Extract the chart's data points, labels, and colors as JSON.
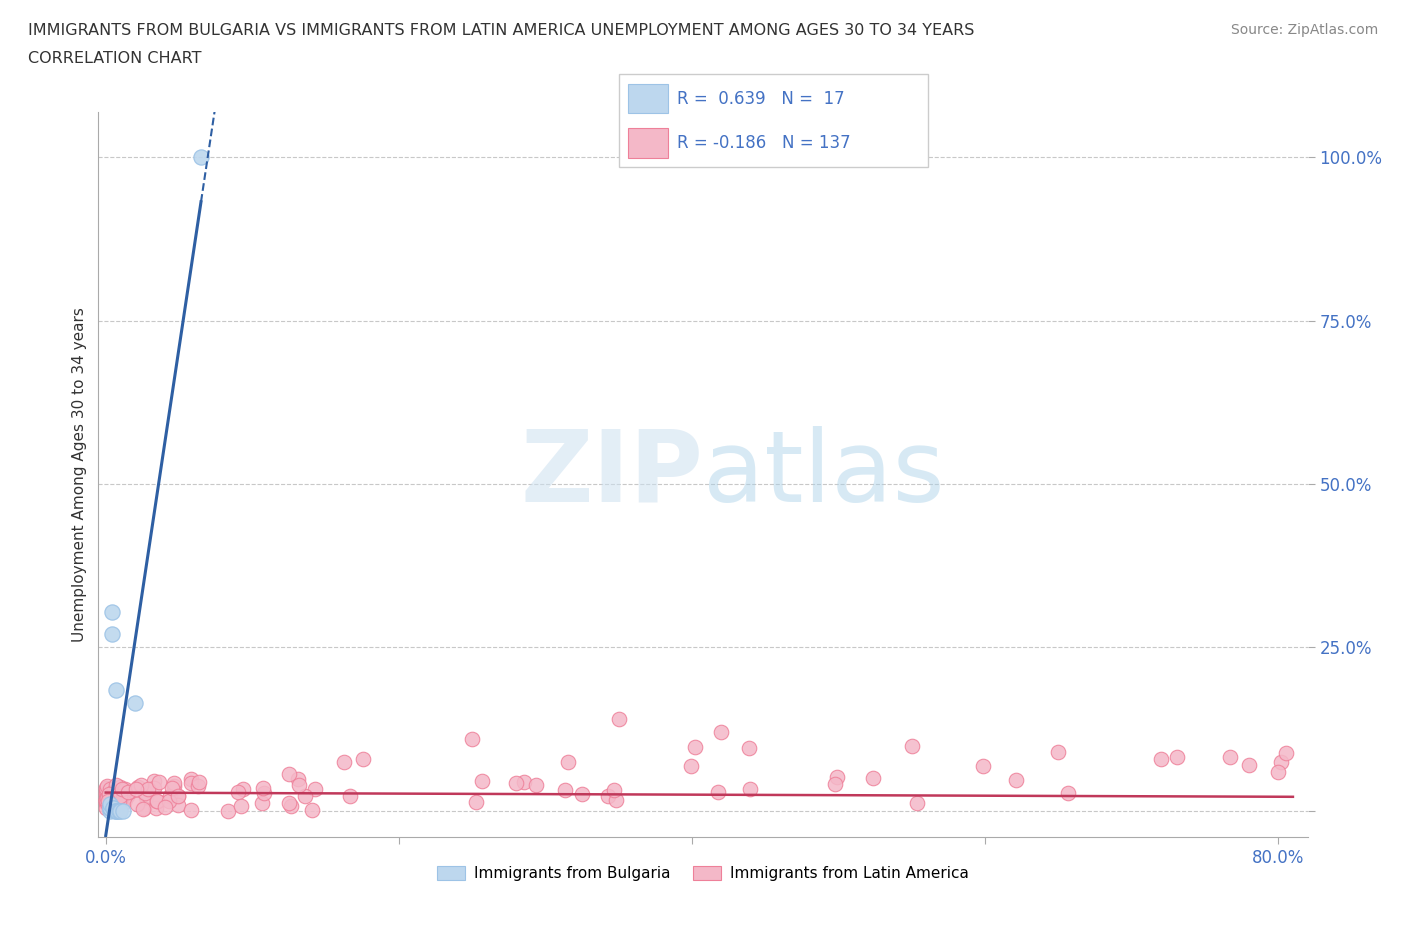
{
  "title_line1": "IMMIGRANTS FROM BULGARIA VS IMMIGRANTS FROM LATIN AMERICA UNEMPLOYMENT AMONG AGES 30 TO 34 YEARS",
  "title_line2": "CORRELATION CHART",
  "source": "Source: ZipAtlas.com",
  "ylabel": "Unemployment Among Ages 30 to 34 years",
  "xlim": [
    -0.005,
    0.82
  ],
  "ylim": [
    -0.04,
    1.07
  ],
  "xticks": [
    0.0,
    0.2,
    0.4,
    0.6,
    0.8
  ],
  "xticklabels": [
    "0.0%",
    "",
    "",
    "",
    "80.0%"
  ],
  "yticks": [
    0.0,
    0.25,
    0.5,
    0.75,
    1.0
  ],
  "yticklabels": [
    "",
    "25.0%",
    "50.0%",
    "75.0%",
    "100.0%"
  ],
  "grid_color": "#c8c8c8",
  "bg_color": "#ffffff",
  "tick_color": "#4472c4",
  "bulgaria_color": "#bdd7ee",
  "latin_color": "#f4b8c8",
  "bulgaria_edge": "#9dc3e6",
  "latin_edge": "#ee8099",
  "trend_bulgaria_color": "#2e5fa3",
  "trend_latin_color": "#c0385a",
  "R_bulgaria": 0.639,
  "N_bulgaria": 17,
  "R_latin": -0.186,
  "N_latin": 137,
  "legend_label_bulgaria": "Immigrants from Bulgaria",
  "legend_label_latin": "Immigrants from Latin America",
  "bulgaria_x": [
    0.003,
    0.003,
    0.003,
    0.003,
    0.004,
    0.004,
    0.005,
    0.005,
    0.006,
    0.007,
    0.007,
    0.008,
    0.009,
    0.01,
    0.012,
    0.02,
    0.065
  ],
  "bulgaria_y": [
    0.0,
    0.005,
    0.005,
    0.01,
    0.27,
    0.305,
    0.005,
    0.005,
    0.0,
    0.0,
    0.185,
    0.0,
    0.0,
    0.0,
    0.0,
    0.165,
    1.0
  ],
  "bg_trend_x0": 0.0,
  "bg_trend_x_solid_end": 0.065,
  "bg_trend_x_dashed_end": 0.175,
  "latin_trend_x0": 0.0,
  "latin_trend_x1": 0.81,
  "latin_slope": -0.008,
  "latin_intercept": 0.028
}
